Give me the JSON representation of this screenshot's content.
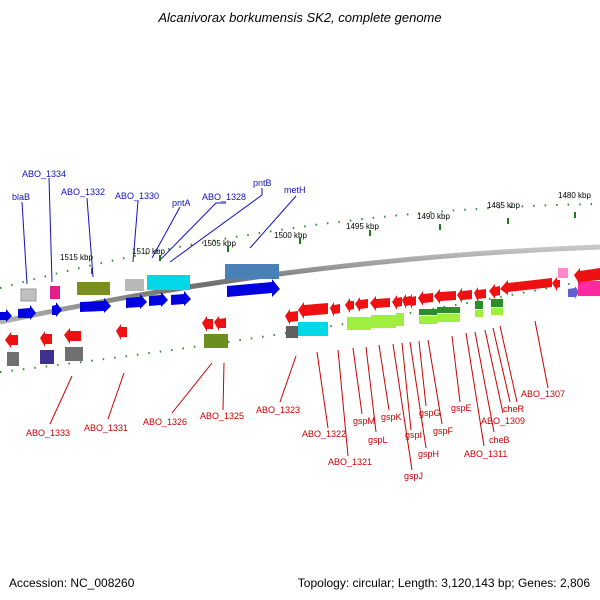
{
  "title": "Alcanivorax borkumensis SK2, complete genome",
  "footer": {
    "accession": "Accession: NC_008260",
    "topology": "Topology: circular; Length: 3,120,143 bp; Genes: 2,806"
  },
  "colors": {
    "blue_label": "#1010c0",
    "red_label": "#cc0000",
    "tick": "#2e8b2e",
    "backbone": "#808080"
  },
  "ticks": [
    "1515 kbp",
    "1510 kbp",
    "1505 kbp",
    "1500 kbp",
    "1495 kbp",
    "1490 kbp",
    "1485 kbp",
    "1480 kbp"
  ],
  "top_labels": [
    "ABO_1334",
    "blaB",
    "ABO_1332",
    "ABO_1330",
    "pntA",
    "ABO_1328",
    "pntB",
    "metH"
  ],
  "bottom_labels": [
    "ABO_1333",
    "ABO_1331",
    "ABO_1326",
    "ABO_1325",
    "ABO_1323",
    "ABO_1322",
    "ABO_1321",
    "gspM",
    "gspL",
    "gspK",
    "gspJ",
    "gspI",
    "gspH",
    "gspG",
    "gspF",
    "gspE",
    "ABO_1311",
    "cheB",
    "ABO_1309",
    "cheR",
    "ABO_1307"
  ]
}
